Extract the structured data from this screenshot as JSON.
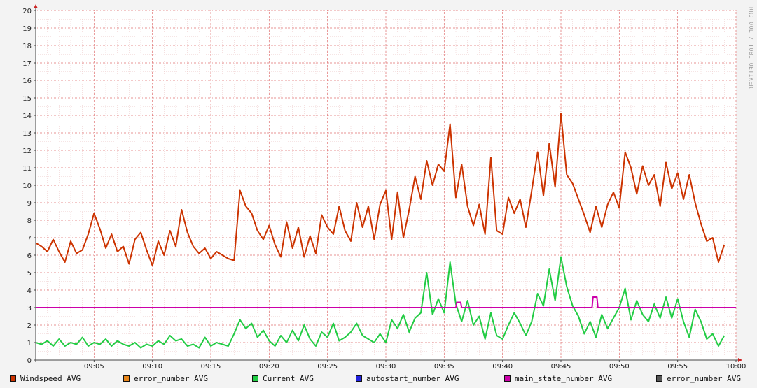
{
  "chart_data": {
    "type": "line",
    "title": "",
    "xlabel": "",
    "ylabel": "",
    "xlim": [
      "09:00:00",
      "10:00:00"
    ],
    "ylim": [
      0,
      20
    ],
    "grid": true,
    "legend_position": "bottom",
    "yticks": [
      "0",
      "1",
      "2",
      "3",
      "4",
      "5",
      "6",
      "7",
      "8",
      "9",
      "10",
      "11",
      "12",
      "13",
      "14",
      "15",
      "16",
      "17",
      "18",
      "19",
      "20"
    ],
    "xticks": [
      "09:05",
      "09:10",
      "09:15",
      "09:20",
      "09:25",
      "09:30",
      "09:35",
      "09:40",
      "09:45",
      "09:50",
      "09:55",
      "10:00"
    ],
    "watermark": "RRDTOOL / TOBI OETIKER",
    "series": [
      {
        "name": "Windspeed AVG",
        "color": "#cc3300",
        "points": [
          [
            "09:00:00",
            6.7
          ],
          [
            "09:00:30",
            6.5
          ],
          [
            "09:01:00",
            6.2
          ],
          [
            "09:01:30",
            6.9
          ],
          [
            "09:02:00",
            6.2
          ],
          [
            "09:02:30",
            5.6
          ],
          [
            "09:03:00",
            6.8
          ],
          [
            "09:03:30",
            6.1
          ],
          [
            "09:04:00",
            6.3
          ],
          [
            "09:04:30",
            7.2
          ],
          [
            "09:05:00",
            8.4
          ],
          [
            "09:05:30",
            7.5
          ],
          [
            "09:06:00",
            6.4
          ],
          [
            "09:06:30",
            7.2
          ],
          [
            "09:07:00",
            6.2
          ],
          [
            "09:07:30",
            6.5
          ],
          [
            "09:08:00",
            5.5
          ],
          [
            "09:08:30",
            6.9
          ],
          [
            "09:09:00",
            7.3
          ],
          [
            "09:09:30",
            6.3
          ],
          [
            "09:10:00",
            5.4
          ],
          [
            "09:10:30",
            6.8
          ],
          [
            "09:11:00",
            6.0
          ],
          [
            "09:11:30",
            7.4
          ],
          [
            "09:12:00",
            6.5
          ],
          [
            "09:12:30",
            8.6
          ],
          [
            "09:13:00",
            7.3
          ],
          [
            "09:13:30",
            6.5
          ],
          [
            "09:14:00",
            6.1
          ],
          [
            "09:14:30",
            6.4
          ],
          [
            "09:15:00",
            5.8
          ],
          [
            "09:15:30",
            6.2
          ],
          [
            "09:16:00",
            6.0
          ],
          [
            "09:16:30",
            5.8
          ],
          [
            "09:17:00",
            5.7
          ],
          [
            "09:17:30",
            9.7
          ],
          [
            "09:18:00",
            8.8
          ],
          [
            "09:18:30",
            8.4
          ],
          [
            "09:19:00",
            7.4
          ],
          [
            "09:19:30",
            6.9
          ],
          [
            "09:20:00",
            7.7
          ],
          [
            "09:20:30",
            6.6
          ],
          [
            "09:21:00",
            5.9
          ],
          [
            "09:21:30",
            7.9
          ],
          [
            "09:22:00",
            6.4
          ],
          [
            "09:22:30",
            7.6
          ],
          [
            "09:23:00",
            5.9
          ],
          [
            "09:23:30",
            7.1
          ],
          [
            "09:24:00",
            6.1
          ],
          [
            "09:24:30",
            8.3
          ],
          [
            "09:25:00",
            7.6
          ],
          [
            "09:25:30",
            7.2
          ],
          [
            "09:26:00",
            8.8
          ],
          [
            "09:26:30",
            7.4
          ],
          [
            "09:27:00",
            6.8
          ],
          [
            "09:27:30",
            9.0
          ],
          [
            "09:28:00",
            7.6
          ],
          [
            "09:28:30",
            8.8
          ],
          [
            "09:29:00",
            6.9
          ],
          [
            "09:29:30",
            8.9
          ],
          [
            "09:30:00",
            9.7
          ],
          [
            "09:30:30",
            6.9
          ],
          [
            "09:31:00",
            9.6
          ],
          [
            "09:31:30",
            7.0
          ],
          [
            "09:32:00",
            8.6
          ],
          [
            "09:32:30",
            10.5
          ],
          [
            "09:33:00",
            9.2
          ],
          [
            "09:33:30",
            11.4
          ],
          [
            "09:34:00",
            10.0
          ],
          [
            "09:34:30",
            11.2
          ],
          [
            "09:35:00",
            10.8
          ],
          [
            "09:35:30",
            13.5
          ],
          [
            "09:36:00",
            9.3
          ],
          [
            "09:36:30",
            11.2
          ],
          [
            "09:37:00",
            8.8
          ],
          [
            "09:37:30",
            7.7
          ],
          [
            "09:38:00",
            8.9
          ],
          [
            "09:38:30",
            7.2
          ],
          [
            "09:39:00",
            11.6
          ],
          [
            "09:39:30",
            7.4
          ],
          [
            "09:40:00",
            7.2
          ],
          [
            "09:40:30",
            9.3
          ],
          [
            "09:41:00",
            8.4
          ],
          [
            "09:41:30",
            9.2
          ],
          [
            "09:42:00",
            7.6
          ],
          [
            "09:42:30",
            9.7
          ],
          [
            "09:43:00",
            11.9
          ],
          [
            "09:43:30",
            9.4
          ],
          [
            "09:44:00",
            12.4
          ],
          [
            "09:44:30",
            9.9
          ],
          [
            "09:45:00",
            14.1
          ],
          [
            "09:45:30",
            10.6
          ],
          [
            "09:46:00",
            10.1
          ],
          [
            "09:46:30",
            9.2
          ],
          [
            "09:47:00",
            8.3
          ],
          [
            "09:47:30",
            7.3
          ],
          [
            "09:48:00",
            8.8
          ],
          [
            "09:48:30",
            7.6
          ],
          [
            "09:49:00",
            8.9
          ],
          [
            "09:49:30",
            9.6
          ],
          [
            "09:50:00",
            8.7
          ],
          [
            "09:50:30",
            11.9
          ],
          [
            "09:51:00",
            11.0
          ],
          [
            "09:51:30",
            9.5
          ],
          [
            "09:52:00",
            11.1
          ],
          [
            "09:52:30",
            10.0
          ],
          [
            "09:53:00",
            10.6
          ],
          [
            "09:53:30",
            8.8
          ],
          [
            "09:54:00",
            11.3
          ],
          [
            "09:54:30",
            9.8
          ],
          [
            "09:55:00",
            10.7
          ],
          [
            "09:55:30",
            9.2
          ],
          [
            "09:56:00",
            10.6
          ],
          [
            "09:56:30",
            9.0
          ],
          [
            "09:57:00",
            7.8
          ],
          [
            "09:57:30",
            6.8
          ],
          [
            "09:58:00",
            7.0
          ],
          [
            "09:58:30",
            5.6
          ],
          [
            "09:59:00",
            6.6
          ]
        ]
      },
      {
        "name": "error_number AVG",
        "color": "#e8851a",
        "points": []
      },
      {
        "name": "Current AVG",
        "color": "#22cc44",
        "points": [
          [
            "09:00:00",
            1.0
          ],
          [
            "09:00:30",
            0.9
          ],
          [
            "09:01:00",
            1.1
          ],
          [
            "09:01:30",
            0.8
          ],
          [
            "09:02:00",
            1.2
          ],
          [
            "09:02:30",
            0.8
          ],
          [
            "09:03:00",
            1.0
          ],
          [
            "09:03:30",
            0.9
          ],
          [
            "09:04:00",
            1.3
          ],
          [
            "09:04:30",
            0.8
          ],
          [
            "09:05:00",
            1.0
          ],
          [
            "09:05:30",
            0.9
          ],
          [
            "09:06:00",
            1.2
          ],
          [
            "09:06:30",
            0.8
          ],
          [
            "09:07:00",
            1.1
          ],
          [
            "09:07:30",
            0.9
          ],
          [
            "09:08:00",
            0.8
          ],
          [
            "09:08:30",
            1.0
          ],
          [
            "09:09:00",
            0.7
          ],
          [
            "09:09:30",
            0.9
          ],
          [
            "09:10:00",
            0.8
          ],
          [
            "09:10:30",
            1.1
          ],
          [
            "09:11:00",
            0.9
          ],
          [
            "09:11:30",
            1.4
          ],
          [
            "09:12:00",
            1.1
          ],
          [
            "09:12:30",
            1.2
          ],
          [
            "09:13:00",
            0.8
          ],
          [
            "09:13:30",
            0.9
          ],
          [
            "09:14:00",
            0.7
          ],
          [
            "09:14:30",
            1.3
          ],
          [
            "09:15:00",
            0.8
          ],
          [
            "09:15:30",
            1.0
          ],
          [
            "09:16:00",
            0.9
          ],
          [
            "09:16:30",
            0.8
          ],
          [
            "09:17:00",
            1.5
          ],
          [
            "09:17:30",
            2.3
          ],
          [
            "09:18:00",
            1.8
          ],
          [
            "09:18:30",
            2.1
          ],
          [
            "09:19:00",
            1.3
          ],
          [
            "09:19:30",
            1.7
          ],
          [
            "09:20:00",
            1.1
          ],
          [
            "09:20:30",
            0.8
          ],
          [
            "09:21:00",
            1.4
          ],
          [
            "09:21:30",
            1.0
          ],
          [
            "09:22:00",
            1.7
          ],
          [
            "09:22:30",
            1.1
          ],
          [
            "09:23:00",
            2.0
          ],
          [
            "09:23:30",
            1.2
          ],
          [
            "09:24:00",
            0.8
          ],
          [
            "09:24:30",
            1.6
          ],
          [
            "09:25:00",
            1.3
          ],
          [
            "09:25:30",
            2.1
          ],
          [
            "09:26:00",
            1.1
          ],
          [
            "09:26:30",
            1.3
          ],
          [
            "09:27:00",
            1.6
          ],
          [
            "09:27:30",
            2.1
          ],
          [
            "09:28:00",
            1.4
          ],
          [
            "09:28:30",
            1.2
          ],
          [
            "09:29:00",
            1.0
          ],
          [
            "09:29:30",
            1.5
          ],
          [
            "09:30:00",
            1.0
          ],
          [
            "09:30:30",
            2.3
          ],
          [
            "09:31:00",
            1.8
          ],
          [
            "09:31:30",
            2.6
          ],
          [
            "09:32:00",
            1.6
          ],
          [
            "09:32:30",
            2.4
          ],
          [
            "09:33:00",
            2.7
          ],
          [
            "09:33:30",
            5.0
          ],
          [
            "09:34:00",
            2.6
          ],
          [
            "09:34:30",
            3.5
          ],
          [
            "09:35:00",
            2.7
          ],
          [
            "09:35:30",
            5.6
          ],
          [
            "09:36:00",
            3.2
          ],
          [
            "09:36:30",
            2.2
          ],
          [
            "09:37:00",
            3.4
          ],
          [
            "09:37:30",
            2.0
          ],
          [
            "09:38:00",
            2.5
          ],
          [
            "09:38:30",
            1.2
          ],
          [
            "09:39:00",
            2.7
          ],
          [
            "09:39:30",
            1.4
          ],
          [
            "09:40:00",
            1.2
          ],
          [
            "09:40:30",
            2.0
          ],
          [
            "09:41:00",
            2.7
          ],
          [
            "09:41:30",
            2.1
          ],
          [
            "09:42:00",
            1.4
          ],
          [
            "09:42:30",
            2.2
          ],
          [
            "09:43:00",
            3.8
          ],
          [
            "09:43:30",
            3.1
          ],
          [
            "09:44:00",
            5.2
          ],
          [
            "09:44:30",
            3.4
          ],
          [
            "09:45:00",
            5.9
          ],
          [
            "09:45:30",
            4.2
          ],
          [
            "09:46:00",
            3.1
          ],
          [
            "09:46:30",
            2.5
          ],
          [
            "09:47:00",
            1.5
          ],
          [
            "09:47:30",
            2.2
          ],
          [
            "09:48:00",
            1.3
          ],
          [
            "09:48:30",
            2.6
          ],
          [
            "09:49:00",
            1.8
          ],
          [
            "09:49:30",
            2.4
          ],
          [
            "09:50:00",
            3.0
          ],
          [
            "09:50:30",
            4.1
          ],
          [
            "09:51:00",
            2.3
          ],
          [
            "09:51:30",
            3.4
          ],
          [
            "09:52:00",
            2.6
          ],
          [
            "09:52:30",
            2.2
          ],
          [
            "09:53:00",
            3.2
          ],
          [
            "09:53:30",
            2.4
          ],
          [
            "09:54:00",
            3.6
          ],
          [
            "09:54:30",
            2.4
          ],
          [
            "09:55:00",
            3.5
          ],
          [
            "09:55:30",
            2.2
          ],
          [
            "09:56:00",
            1.3
          ],
          [
            "09:56:30",
            2.9
          ],
          [
            "09:57:00",
            2.2
          ],
          [
            "09:57:30",
            1.2
          ],
          [
            "09:58:00",
            1.5
          ],
          [
            "09:58:30",
            0.8
          ],
          [
            "09:59:00",
            1.4
          ]
        ]
      },
      {
        "name": "autostart_number AVG",
        "color": "#2222dd",
        "points": []
      },
      {
        "name": "main_state_number AVG",
        "color": "#cc00aa",
        "points": [
          [
            "09:00:00",
            3.0
          ],
          [
            "09:36:00",
            3.0
          ],
          [
            "09:36:05",
            3.3
          ],
          [
            "09:36:25",
            3.3
          ],
          [
            "09:36:30",
            3.0
          ],
          [
            "09:47:40",
            3.0
          ],
          [
            "09:47:45",
            3.6
          ],
          [
            "09:48:05",
            3.6
          ],
          [
            "09:48:10",
            3.0
          ],
          [
            "10:00:00",
            3.0
          ]
        ]
      },
      {
        "name": "error_number AVG",
        "color": "#555555",
        "points": []
      }
    ]
  }
}
